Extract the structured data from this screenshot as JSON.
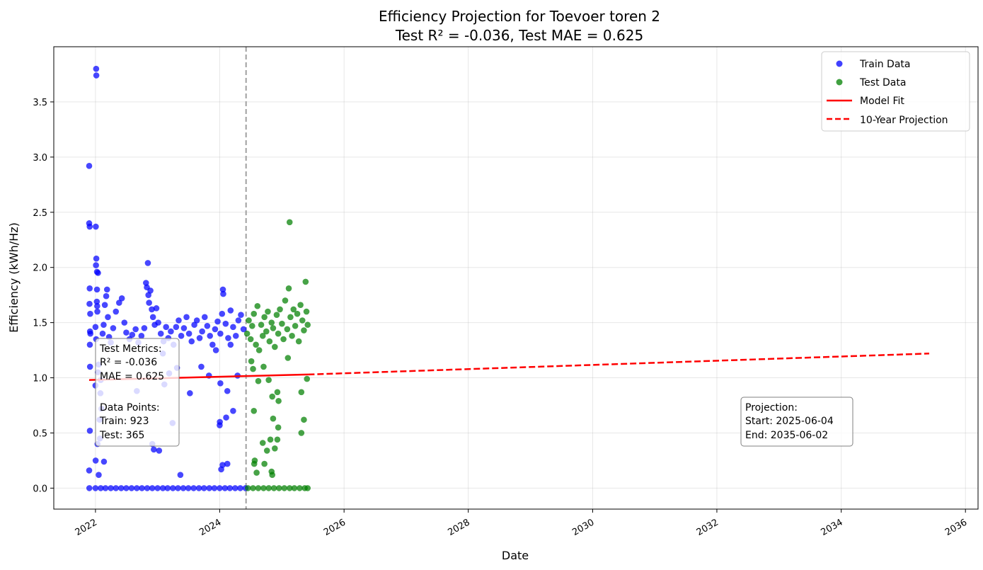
{
  "chart_data": {
    "type": "scatter",
    "title": "Efficiency Projection for Toevoer toren 2",
    "subtitle": "Test R² = -0.036, Test MAE = 0.625",
    "xlabel": "Date",
    "ylabel": "Efficiency (kWh/Hz)",
    "xlim": [
      "2021-05-01",
      "2036-03-15"
    ],
    "ylim": [
      -0.19,
      4.0
    ],
    "x_ticks": [
      "2022",
      "2024",
      "2026",
      "2028",
      "2030",
      "2032",
      "2034",
      "2036"
    ],
    "y_ticks": [
      "0.0",
      "0.5",
      "1.0",
      "1.5",
      "2.0",
      "2.5",
      "3.0",
      "3.5"
    ],
    "grid": true,
    "legend_position": "top-right",
    "split_date": "2024-06-04",
    "series": [
      {
        "name": "Train Data",
        "kind": "scatter",
        "color": "#0000ff",
        "points": [
          [
            "2021-11-25",
            2.92
          ],
          [
            "2021-11-25",
            2.4
          ],
          [
            "2021-11-28",
            2.37
          ],
          [
            "2021-11-28",
            1.81
          ],
          [
            "2021-11-27",
            1.67
          ],
          [
            "2021-12-01",
            1.58
          ],
          [
            "2021-11-30",
            1.42
          ],
          [
            "2021-12-02",
            1.4
          ],
          [
            "2021-11-29",
            1.3
          ],
          [
            "2021-11-30",
            1.1
          ],
          [
            "2021-11-29",
            0.52
          ],
          [
            "2021-11-25",
            0.16
          ],
          [
            "2022-01-05",
            3.8
          ],
          [
            "2022-01-06",
            3.74
          ],
          [
            "2022-01-03",
            2.37
          ],
          [
            "2022-01-06",
            2.08
          ],
          [
            "2022-01-04",
            2.02
          ],
          [
            "2022-01-10",
            1.96
          ],
          [
            "2022-01-16",
            1.95
          ],
          [
            "2022-01-10",
            1.8
          ],
          [
            "2022-01-09",
            1.69
          ],
          [
            "2022-01-11",
            1.65
          ],
          [
            "2022-01-12",
            1.6
          ],
          [
            "2022-01-01",
            1.46
          ],
          [
            "2022-01-05",
            1.35
          ],
          [
            "2022-01-01",
            0.93
          ],
          [
            "2022-01-02",
            0.25
          ],
          [
            "2022-01-20",
            0.12
          ],
          [
            "2022-02-20",
            0.24
          ],
          [
            "2022-03-10",
            1.8
          ],
          [
            "2022-03-05",
            1.74
          ],
          [
            "2022-02-25",
            1.66
          ],
          [
            "2022-03-15",
            1.55
          ],
          [
            "2022-02-18",
            1.48
          ],
          [
            "2022-02-12",
            1.4
          ],
          [
            "2022-03-22",
            1.37
          ],
          [
            "2022-04-01",
            1.32
          ],
          [
            "2022-04-15",
            1.45
          ],
          [
            "2022-05-01",
            1.6
          ],
          [
            "2022-05-20",
            1.68
          ],
          [
            "2022-06-05",
            1.72
          ],
          [
            "2022-06-20",
            1.5
          ],
          [
            "2022-07-01",
            1.41
          ],
          [
            "2022-07-20",
            1.35
          ],
          [
            "2022-08-05",
            1.39
          ],
          [
            "2022-08-25",
            1.44
          ],
          [
            "2022-09-10",
            1.32
          ],
          [
            "2022-09-28",
            1.38
          ],
          [
            "2022-10-15",
            1.45
          ],
          [
            "2022-10-25",
            1.86
          ],
          [
            "2022-10-30",
            1.82
          ],
          [
            "2022-11-05",
            2.04
          ],
          [
            "2022-11-08",
            1.75
          ],
          [
            "2022-11-12",
            1.68
          ],
          [
            "2022-11-20",
            1.79
          ],
          [
            "2022-11-28",
            1.62
          ],
          [
            "2022-12-05",
            1.55
          ],
          [
            "2022-12-15",
            1.48
          ],
          [
            "2022-12-25",
            1.63
          ],
          [
            "2023-01-05",
            1.5
          ],
          [
            "2023-01-20",
            1.4
          ],
          [
            "2023-02-05",
            1.33
          ],
          [
            "2023-02-20",
            1.46
          ],
          [
            "2023-03-05",
            1.36
          ],
          [
            "2023-03-20",
            1.42
          ],
          [
            "2023-04-05",
            1.3
          ],
          [
            "2023-04-20",
            1.46
          ],
          [
            "2023-05-05",
            1.52
          ],
          [
            "2023-05-20",
            1.38
          ],
          [
            "2023-06-05",
            1.45
          ],
          [
            "2023-06-20",
            1.55
          ],
          [
            "2023-07-05",
            1.4
          ],
          [
            "2023-07-20",
            1.33
          ],
          [
            "2023-08-05",
            1.48
          ],
          [
            "2023-08-20",
            1.52
          ],
          [
            "2023-09-05",
            1.36
          ],
          [
            "2023-09-20",
            1.42
          ],
          [
            "2023-10-05",
            1.55
          ],
          [
            "2023-10-20",
            1.47
          ],
          [
            "2023-11-05",
            1.38
          ],
          [
            "2023-11-20",
            1.3
          ],
          [
            "2023-12-05",
            1.44
          ],
          [
            "2023-12-20",
            1.51
          ],
          [
            "2024-01-05",
            1.4
          ],
          [
            "2024-01-15",
            1.58
          ],
          [
            "2024-01-20",
            1.8
          ],
          [
            "2024-01-22",
            1.76
          ],
          [
            "2024-02-05",
            1.49
          ],
          [
            "2024-02-20",
            1.36
          ],
          [
            "2024-03-05",
            1.61
          ],
          [
            "2024-03-20",
            1.46
          ],
          [
            "2024-04-05",
            1.38
          ],
          [
            "2024-04-20",
            1.52
          ],
          [
            "2024-05-05",
            1.57
          ],
          [
            "2024-05-20",
            1.44
          ],
          [
            "2023-09-15",
            1.1
          ],
          [
            "2023-10-30",
            1.02
          ],
          [
            "2023-04-25",
            1.09
          ],
          [
            "2023-03-10",
            1.04
          ],
          [
            "2023-02-01",
            1.22
          ],
          [
            "2023-07-10",
            0.86
          ],
          [
            "2023-05-15",
            0.12
          ],
          [
            "2023-03-30",
            0.59
          ],
          [
            "2023-02-10",
            0.94
          ],
          [
            "2023-01-10",
            0.34
          ],
          [
            "2022-12-01",
            0.4
          ],
          [
            "2022-12-10",
            0.35
          ],
          [
            "2022-09-01",
            0.88
          ],
          [
            "2023-12-10",
            1.25
          ],
          [
            "2024-01-05",
            0.95
          ],
          [
            "2024-01-02",
            0.6
          ],
          [
            "2024-01-01",
            0.57
          ],
          [
            "2024-01-18",
            0.21
          ],
          [
            "2024-01-10",
            0.17
          ],
          [
            "2024-02-15",
            0.22
          ],
          [
            "2024-02-08",
            0.64
          ],
          [
            "2024-02-15",
            0.88
          ],
          [
            "2024-03-20",
            0.7
          ],
          [
            "2024-04-15",
            1.02
          ],
          [
            "2024-03-05",
            1.3
          ],
          [
            "2022-01-15",
            1.05
          ],
          [
            "2022-02-01",
            0.98
          ],
          [
            "2022-01-20",
            1.12
          ],
          [
            "2022-01-25",
            0.62
          ],
          [
            "2022-01-27",
            0.45
          ],
          [
            "2022-02-05",
            0.72
          ],
          [
            "2022-01-13",
            0.4
          ],
          [
            "2022-01-30",
            0.86
          ],
          [
            "2021-11-26",
            0.0
          ],
          [
            "2022-01-01",
            0.0
          ],
          [
            "2022-02-01",
            0.0
          ],
          [
            "2022-03-01",
            0.0
          ],
          [
            "2022-04-01",
            0.0
          ],
          [
            "2022-05-01",
            0.0
          ],
          [
            "2022-06-01",
            0.0
          ],
          [
            "2022-07-01",
            0.0
          ],
          [
            "2022-08-01",
            0.0
          ],
          [
            "2022-09-01",
            0.0
          ],
          [
            "2022-10-01",
            0.0
          ],
          [
            "2022-11-01",
            0.0
          ],
          [
            "2022-12-01",
            0.0
          ],
          [
            "2023-01-01",
            0.0
          ],
          [
            "2023-02-01",
            0.0
          ],
          [
            "2023-03-01",
            0.0
          ],
          [
            "2023-04-01",
            0.0
          ],
          [
            "2023-05-01",
            0.0
          ],
          [
            "2023-06-01",
            0.0
          ],
          [
            "2023-07-01",
            0.0
          ],
          [
            "2023-08-01",
            0.0
          ],
          [
            "2023-09-01",
            0.0
          ],
          [
            "2023-10-01",
            0.0
          ],
          [
            "2023-11-01",
            0.0
          ],
          [
            "2023-12-01",
            0.0
          ],
          [
            "2024-01-01",
            0.0
          ],
          [
            "2024-02-01",
            0.0
          ],
          [
            "2024-03-01",
            0.0
          ],
          [
            "2024-04-01",
            0.0
          ],
          [
            "2024-05-01",
            0.0
          ],
          [
            "2024-06-01",
            0.0
          ]
        ]
      },
      {
        "name": "Test Data",
        "kind": "scatter",
        "color": "#008000",
        "points": [
          [
            "2024-06-10",
            1.4
          ],
          [
            "2024-06-20",
            1.52
          ],
          [
            "2024-07-01",
            1.35
          ],
          [
            "2024-07-10",
            1.47
          ],
          [
            "2024-07-20",
            1.58
          ],
          [
            "2024-08-01",
            1.3
          ],
          [
            "2024-08-10",
            1.65
          ],
          [
            "2024-08-20",
            1.25
          ],
          [
            "2024-09-01",
            1.48
          ],
          [
            "2024-09-10",
            1.38
          ],
          [
            "2024-09-20",
            1.55
          ],
          [
            "2024-10-01",
            1.42
          ],
          [
            "2024-10-10",
            1.6
          ],
          [
            "2024-10-20",
            1.33
          ],
          [
            "2024-11-01",
            1.5
          ],
          [
            "2024-11-10",
            1.45
          ],
          [
            "2024-11-20",
            1.28
          ],
          [
            "2024-12-01",
            1.57
          ],
          [
            "2024-12-10",
            1.4
          ],
          [
            "2024-12-20",
            1.62
          ],
          [
            "2025-01-01",
            1.49
          ],
          [
            "2025-01-10",
            1.35
          ],
          [
            "2025-01-20",
            1.7
          ],
          [
            "2025-02-01",
            1.44
          ],
          [
            "2025-02-10",
            1.81
          ],
          [
            "2025-02-15",
            2.41
          ],
          [
            "2025-02-20",
            1.55
          ],
          [
            "2025-03-01",
            1.38
          ],
          [
            "2025-03-10",
            1.62
          ],
          [
            "2025-03-20",
            1.47
          ],
          [
            "2025-04-01",
            1.58
          ],
          [
            "2025-04-10",
            1.33
          ],
          [
            "2025-04-20",
            1.66
          ],
          [
            "2025-05-01",
            1.52
          ],
          [
            "2025-05-10",
            1.43
          ],
          [
            "2025-05-20",
            1.87
          ],
          [
            "2025-05-25",
            1.6
          ],
          [
            "2025-06-01",
            1.48
          ],
          [
            "2024-07-05",
            1.15
          ],
          [
            "2024-07-15",
            1.08
          ],
          [
            "2024-08-15",
            0.97
          ],
          [
            "2024-09-15",
            1.1
          ],
          [
            "2024-10-15",
            0.98
          ],
          [
            "2024-11-05",
            0.83
          ],
          [
            "2024-12-05",
            0.87
          ],
          [
            "2024-12-12",
            0.79
          ],
          [
            "2025-02-05",
            1.18
          ],
          [
            "2025-04-25",
            0.87
          ],
          [
            "2025-05-10",
            0.62
          ],
          [
            "2025-05-28",
            0.99
          ],
          [
            "2025-04-25",
            0.5
          ],
          [
            "2024-12-10",
            0.55
          ],
          [
            "2024-11-10",
            0.63
          ],
          [
            "2024-07-20",
            0.7
          ],
          [
            "2024-07-25",
            0.25
          ],
          [
            "2024-07-22",
            0.22
          ],
          [
            "2024-08-05",
            0.14
          ],
          [
            "2024-09-10",
            0.41
          ],
          [
            "2024-09-20",
            0.22
          ],
          [
            "2024-10-05",
            0.34
          ],
          [
            "2024-11-01",
            0.15
          ],
          [
            "2024-11-05",
            0.12
          ],
          [
            "2024-10-25",
            0.44
          ],
          [
            "2024-11-20",
            0.36
          ],
          [
            "2024-12-05",
            0.44
          ],
          [
            "2024-06-15",
            0.0
          ],
          [
            "2024-07-15",
            0.0
          ],
          [
            "2024-08-15",
            0.0
          ],
          [
            "2024-09-15",
            0.0
          ],
          [
            "2024-10-15",
            0.0
          ],
          [
            "2024-11-15",
            0.0
          ],
          [
            "2024-12-15",
            0.0
          ],
          [
            "2025-01-15",
            0.0
          ],
          [
            "2025-02-15",
            0.0
          ],
          [
            "2025-03-15",
            0.0
          ],
          [
            "2025-04-15",
            0.0
          ],
          [
            "2025-05-15",
            0.0
          ],
          [
            "2025-06-01",
            0.0
          ]
        ]
      },
      {
        "name": "Model Fit",
        "kind": "line",
        "color": "#ff0000",
        "dash": "solid",
        "points": [
          [
            "2021-11-25",
            0.98
          ],
          [
            "2025-06-04",
            1.03
          ]
        ]
      },
      {
        "name": "10-Year Projection",
        "kind": "line",
        "color": "#ff0000",
        "dash": "dashed",
        "points": [
          [
            "2025-06-04",
            1.03
          ],
          [
            "2035-06-02",
            1.22
          ]
        ]
      }
    ],
    "annotations": {
      "metrics_box": [
        "Test Metrics:",
        "R² = -0.036",
        "MAE = 0.625",
        "",
        "Data Points:",
        "Train: 923",
        "Test: 365"
      ],
      "projection_box": [
        "Projection:",
        "Start: 2025-06-04",
        "End: 2035-06-02"
      ]
    }
  }
}
